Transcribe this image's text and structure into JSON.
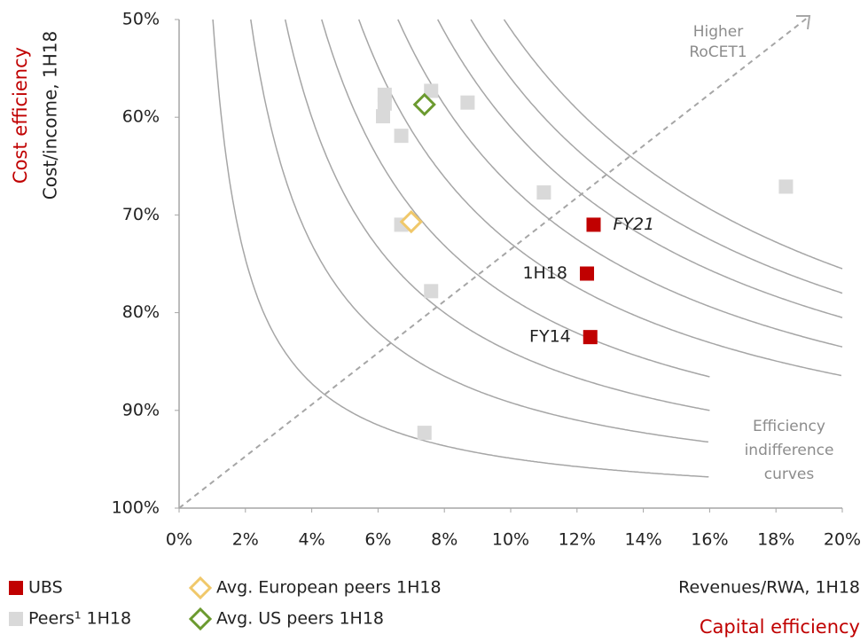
{
  "chart_data": {
    "type": "scatter",
    "x_axis_label": "Revenues/RWA, 1H18",
    "x_axis_title": "Capital efficiency",
    "y_axis_label": "Cost/income, 1H18",
    "y_axis_title": "Cost efficiency",
    "xlim": [
      0,
      20
    ],
    "ylim": [
      50,
      100
    ],
    "y_reversed": true,
    "xticks": [
      {
        "value": 0,
        "label": "0%"
      },
      {
        "value": 2,
        "label": "2%"
      },
      {
        "value": 4,
        "label": "4%"
      },
      {
        "value": 6,
        "label": "6%"
      },
      {
        "value": 8,
        "label": "8%"
      },
      {
        "value": 10,
        "label": "10%"
      },
      {
        "value": 12,
        "label": "12%"
      },
      {
        "value": 14,
        "label": "14%"
      },
      {
        "value": 16,
        "label": "16%"
      },
      {
        "value": 18,
        "label": "18%"
      },
      {
        "value": 20,
        "label": "20%"
      }
    ],
    "yticks": [
      {
        "value": 50,
        "label": "50%"
      },
      {
        "value": 60,
        "label": "60%"
      },
      {
        "value": 70,
        "label": "70%"
      },
      {
        "value": 80,
        "label": "80%"
      },
      {
        "value": 90,
        "label": "90%"
      },
      {
        "value": 100,
        "label": "100%"
      }
    ],
    "series": [
      {
        "name": "UBS",
        "marker": "square",
        "color": "#c00000",
        "x": [
          12.5,
          12.3,
          12.4
        ],
        "values": [
          71,
          76,
          82.5
        ],
        "labels": [
          "FY21",
          "1H18",
          "FY14"
        ]
      },
      {
        "name": "Peers¹ 1H18",
        "marker": "square",
        "color": "#d9d9d9",
        "x": [
          6.2,
          6.2,
          6.15,
          6.7,
          7.6,
          8.7,
          11.0,
          6.7,
          7.6,
          7.4,
          18.3
        ],
        "values": [
          57.7,
          58.6,
          59.9,
          61.9,
          57.3,
          58.5,
          67.7,
          71.0,
          77.8,
          92.3,
          67.1
        ]
      },
      {
        "name": "Avg. European peers 1H18",
        "marker": "diamond",
        "color": "#f0c86a",
        "x": [
          7.0
        ],
        "values": [
          70.7
        ]
      },
      {
        "name": "Avg. US peers 1H18",
        "marker": "diamond",
        "color": "#6b9a2f",
        "x": [
          7.4
        ],
        "values": [
          58.7
        ]
      }
    ],
    "annotations": [
      {
        "lines": [
          "Higher",
          "RoCET1"
        ]
      },
      {
        "lines": [
          "Efficiency",
          "indifference",
          "curves"
        ]
      }
    ]
  }
}
